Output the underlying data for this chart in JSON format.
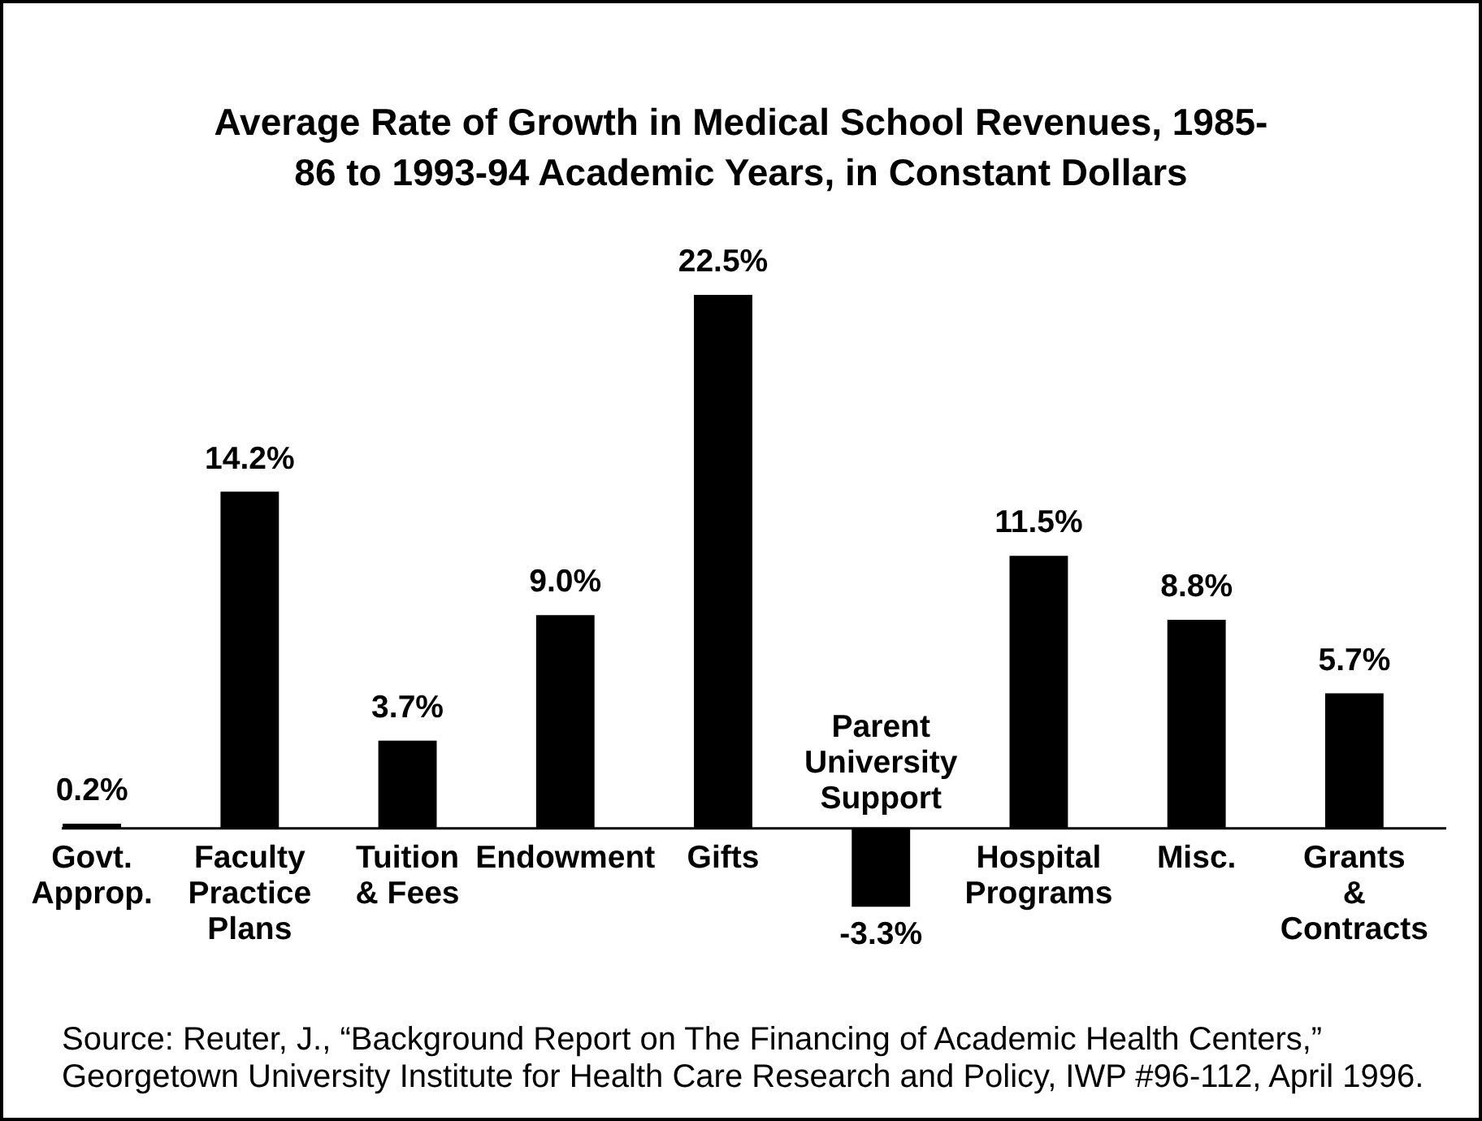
{
  "chart_data": {
    "type": "bar",
    "title": "Average Rate of Growth in Medical School Revenues, 1985-86 to 1993-94 Academic Years, in Constant Dollars",
    "categories": [
      "Govt. Approp.",
      "Faculty Practice Plans",
      "Tuition & Fees",
      "Endowment",
      "Gifts",
      "Parent University Support",
      "Hospital Programs",
      "Misc.",
      "Grants & Contracts"
    ],
    "values": [
      0.2,
      14.2,
      3.7,
      9.0,
      22.5,
      -3.3,
      11.5,
      8.8,
      5.7
    ],
    "value_labels": [
      "0.2%",
      "14.2%",
      "3.7%",
      "9.0%",
      "22.5%",
      "-3.3%",
      "11.5%",
      "8.8%",
      "5.7%"
    ],
    "color": "#000000",
    "annotations": [
      "Source: Reuter, J., “Background Report on The Financing of Academic Health Centers,” Georgetown University Institute for Health Care Research and Policy, IWP #96-112, April 1996."
    ]
  }
}
